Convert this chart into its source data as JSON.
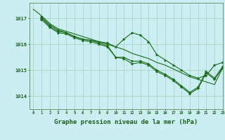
{
  "background_color": "#cbeef3",
  "grid_color": "#a8d5c2",
  "line_color": "#1a6b1a",
  "marker_color": "#1a6b1a",
  "xlabel": "Graphe pression niveau de la mer (hPa)",
  "xlabel_fontsize": 6.5,
  "ylabel_ticks": [
    1014,
    1015,
    1016,
    1017
  ],
  "xlim": [
    -0.5,
    23
  ],
  "ylim": [
    1013.5,
    1017.6
  ],
  "x_ticks": [
    0,
    1,
    2,
    3,
    4,
    5,
    6,
    7,
    8,
    9,
    10,
    11,
    12,
    13,
    14,
    15,
    16,
    17,
    18,
    19,
    20,
    21,
    22,
    23
  ],
  "series": [
    {
      "x": [
        0,
        1,
        2,
        3,
        4,
        5,
        6,
        7,
        8,
        9,
        10,
        11,
        12,
        13,
        14,
        15,
        16,
        17,
        18,
        19,
        20,
        21,
        22,
        23
      ],
      "y": [
        1017.35,
        1017.1,
        1016.8,
        1016.6,
        1016.5,
        1016.4,
        1016.3,
        1016.2,
        1016.1,
        1016.0,
        1015.9,
        1015.8,
        1015.65,
        1015.55,
        1015.45,
        1015.3,
        1015.2,
        1015.05,
        1014.9,
        1014.75,
        1014.65,
        1014.55,
        1014.45,
        1015.1
      ],
      "has_markers": false
    },
    {
      "x": [
        1,
        2,
        3,
        4,
        5,
        6,
        7,
        8,
        9,
        10,
        11,
        12,
        13,
        14,
        15,
        16,
        17,
        18,
        19,
        20,
        21,
        22,
        23
      ],
      "y": [
        1017.05,
        1016.75,
        1016.55,
        1016.45,
        1016.3,
        1016.2,
        1016.15,
        1016.1,
        1016.05,
        1015.9,
        1016.2,
        1016.45,
        1016.35,
        1016.1,
        1015.6,
        1015.4,
        1015.2,
        1015.0,
        1014.8,
        1014.7,
        1014.8,
        1015.2,
        1015.3
      ],
      "has_markers": true
    },
    {
      "x": [
        1,
        2,
        3,
        4,
        5,
        6,
        7,
        8,
        9,
        10,
        11,
        12,
        13,
        14,
        15,
        16,
        17,
        18,
        19,
        20,
        21,
        22,
        23
      ],
      "y": [
        1017.0,
        1016.7,
        1016.5,
        1016.45,
        1016.3,
        1016.2,
        1016.15,
        1016.05,
        1015.95,
        1015.5,
        1015.5,
        1015.35,
        1015.35,
        1015.25,
        1015.0,
        1014.85,
        1014.65,
        1014.4,
        1014.15,
        1014.35,
        1014.95,
        1014.7,
        1015.15
      ],
      "has_markers": true
    },
    {
      "x": [
        1,
        2,
        3,
        4,
        5,
        6,
        7,
        8,
        9,
        10,
        11,
        12,
        13,
        14,
        15,
        16,
        17,
        18,
        19,
        20,
        21,
        22,
        23
      ],
      "y": [
        1016.95,
        1016.65,
        1016.45,
        1016.4,
        1016.25,
        1016.15,
        1016.1,
        1016.0,
        1015.9,
        1015.5,
        1015.45,
        1015.25,
        1015.3,
        1015.2,
        1014.95,
        1014.8,
        1014.6,
        1014.35,
        1014.1,
        1014.3,
        1014.9,
        1014.65,
        1015.1
      ],
      "has_markers": true
    }
  ]
}
